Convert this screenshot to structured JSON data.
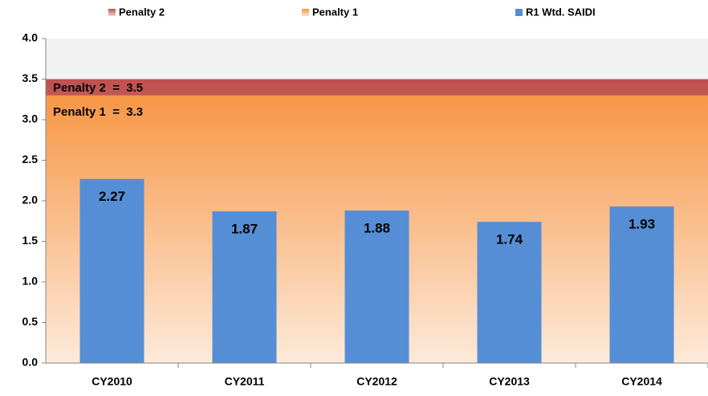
{
  "chart_data": {
    "type": "bar",
    "categories": [
      "CY2010",
      "CY2011",
      "CY2012",
      "CY2013",
      "CY2014"
    ],
    "series": [
      {
        "name": "Penalty 2",
        "type": "area",
        "color": "#c0504d",
        "values": [
          3.5,
          3.5,
          3.5,
          3.5,
          3.5
        ]
      },
      {
        "name": "Penalty 1",
        "type": "area",
        "color": "#f79646",
        "values": [
          3.3,
          3.3,
          3.3,
          3.3,
          3.3
        ]
      },
      {
        "name": "R1 Wtd. SAIDI",
        "type": "bar",
        "color": "#558ed5",
        "values": [
          2.27,
          1.87,
          1.88,
          1.74,
          1.93
        ]
      }
    ],
    "annotations": [
      "Penalty 2  =  3.5",
      "Penalty 1  =  3.3"
    ],
    "ylim": [
      0,
      4
    ],
    "yticks": [
      {
        "value": 0,
        "label": "0.0"
      },
      {
        "value": 0.5,
        "label": "0.5"
      },
      {
        "value": 1,
        "label": "1.0"
      },
      {
        "value": 1.5,
        "label": "1.5"
      },
      {
        "value": 2,
        "label": "2.0"
      },
      {
        "value": 2.5,
        "label": "2.5"
      },
      {
        "value": 3,
        "label": "3.0"
      },
      {
        "value": 3.5,
        "label": "3.5"
      },
      {
        "value": 4,
        "label": "4.0"
      }
    ],
    "plot_background": "#f2f2f2",
    "legend": "top"
  }
}
